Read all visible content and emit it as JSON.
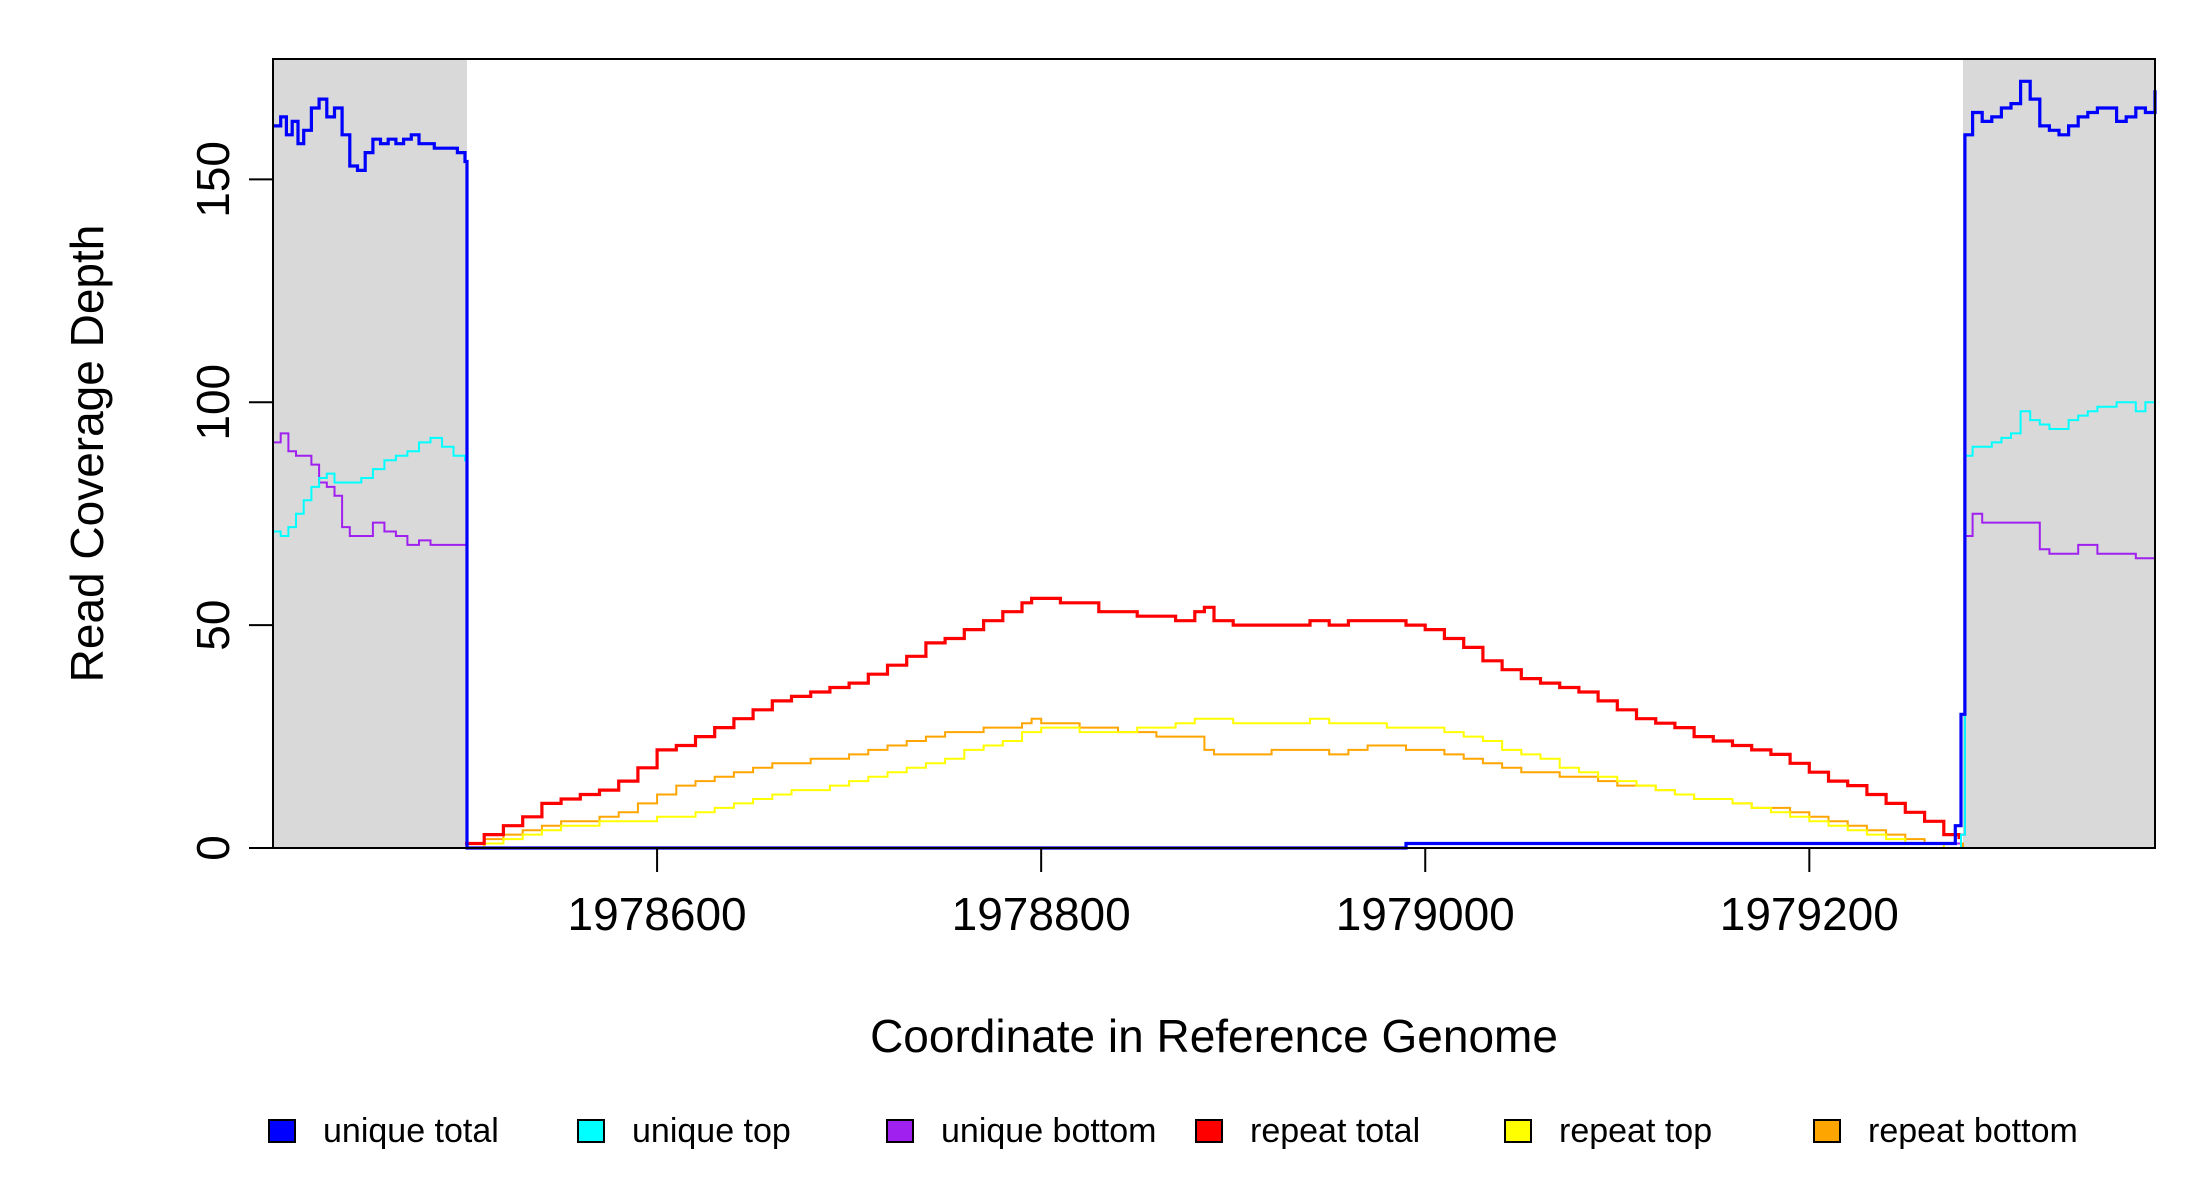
{
  "chart_data": {
    "type": "line",
    "title": "",
    "xlabel": "Coordinate in Reference Genome",
    "ylabel": "Read Coverage Depth",
    "xlim": [
      1978400,
      1979380
    ],
    "ylim": [
      0,
      177
    ],
    "x_ticks": [
      1978600,
      1978800,
      1979000,
      1979200
    ],
    "x_tick_labels": [
      "1978600",
      "1978800",
      "1979000",
      "1979200"
    ],
    "y_ticks": [
      0,
      50,
      100,
      150
    ],
    "y_tick_labels": [
      "0",
      "50",
      "100",
      "150"
    ],
    "shaded_regions": [
      {
        "x0": 1978400,
        "x1": 1978501,
        "color": "#d9d9d9"
      },
      {
        "x0": 1979280,
        "x1": 1979380,
        "color": "#d9d9d9"
      }
    ],
    "grid": false,
    "legend_position": "bottom",
    "series": [
      {
        "name": "unique total",
        "color": "#0000ff",
        "x": [
          1978400,
          1978404,
          1978407,
          1978410,
          1978413,
          1978416,
          1978420,
          1978424,
          1978428,
          1978432,
          1978436,
          1978440,
          1978444,
          1978448,
          1978452,
          1978456,
          1978460,
          1978464,
          1978468,
          1978472,
          1978476,
          1978480,
          1978484,
          1978488,
          1978492,
          1978496,
          1978500,
          1978501,
          1978990,
          1979270,
          1979276,
          1979279,
          1979281,
          1979285,
          1979290,
          1979295,
          1979300,
          1979305,
          1979310,
          1979315,
          1979320,
          1979325,
          1979330,
          1979335,
          1979340,
          1979345,
          1979350,
          1979355,
          1979360,
          1979365,
          1979370,
          1979375,
          1979380
        ],
        "y": [
          162,
          164,
          160,
          163,
          158,
          161,
          166,
          168,
          164,
          166,
          160,
          153,
          152,
          156,
          159,
          158,
          159,
          158,
          159,
          160,
          158,
          158,
          157,
          157,
          157,
          156,
          154,
          0,
          1,
          1,
          5,
          30,
          160,
          165,
          163,
          164,
          166,
          167,
          172,
          168,
          162,
          161,
          160,
          162,
          164,
          165,
          166,
          166,
          163,
          164,
          166,
          165,
          170
        ]
      },
      {
        "name": "unique top",
        "color": "#00ffff",
        "x": [
          1978400,
          1978404,
          1978408,
          1978412,
          1978416,
          1978420,
          1978424,
          1978428,
          1978432,
          1978436,
          1978440,
          1978446,
          1978452,
          1978458,
          1978464,
          1978470,
          1978476,
          1978482,
          1978488,
          1978494,
          1978500,
          1978501,
          1978990,
          1979270,
          1979279,
          1979281,
          1979285,
          1979290,
          1979295,
          1979300,
          1979305,
          1979310,
          1979315,
          1979320,
          1979325,
          1979330,
          1979335,
          1979340,
          1979345,
          1979350,
          1979355,
          1979360,
          1979365,
          1979370,
          1979375,
          1979380
        ],
        "y": [
          71,
          70,
          72,
          75,
          78,
          81,
          83,
          84,
          82,
          82,
          82,
          83,
          85,
          87,
          88,
          89,
          91,
          92,
          90,
          88,
          87,
          0,
          0,
          0,
          3,
          88,
          90,
          90,
          91,
          92,
          93,
          98,
          96,
          95,
          94,
          94,
          96,
          97,
          98,
          99,
          99,
          100,
          100,
          98,
          100,
          105
        ]
      },
      {
        "name": "unique bottom",
        "color": "#a020f0",
        "x": [
          1978400,
          1978404,
          1978408,
          1978412,
          1978416,
          1978420,
          1978424,
          1978428,
          1978432,
          1978436,
          1978440,
          1978446,
          1978452,
          1978458,
          1978464,
          1978470,
          1978476,
          1978482,
          1978488,
          1978494,
          1978500,
          1978501,
          1978990,
          1979270,
          1979279,
          1979281,
          1979285,
          1979290,
          1979300,
          1979310,
          1979315,
          1979320,
          1979325,
          1979330,
          1979340,
          1979350,
          1979360,
          1979370,
          1979380
        ],
        "y": [
          91,
          93,
          89,
          88,
          88,
          86,
          82,
          81,
          79,
          72,
          70,
          70,
          73,
          71,
          70,
          68,
          69,
          68,
          68,
          68,
          68,
          0,
          1,
          1,
          3,
          70,
          75,
          73,
          73,
          73,
          73,
          67,
          66,
          66,
          68,
          66,
          66,
          65,
          65
        ]
      },
      {
        "name": "repeat total",
        "color": "#ff0000",
        "x": [
          1978500,
          1978510,
          1978520,
          1978530,
          1978540,
          1978550,
          1978560,
          1978570,
          1978580,
          1978590,
          1978600,
          1978610,
          1978620,
          1978630,
          1978640,
          1978650,
          1978660,
          1978670,
          1978680,
          1978690,
          1978700,
          1978710,
          1978720,
          1978730,
          1978740,
          1978750,
          1978760,
          1978770,
          1978780,
          1978790,
          1978795,
          1978800,
          1978810,
          1978820,
          1978830,
          1978840,
          1978850,
          1978860,
          1978870,
          1978880,
          1978885,
          1978890,
          1978900,
          1978910,
          1978920,
          1978930,
          1978940,
          1978950,
          1978960,
          1978970,
          1978980,
          1978990,
          1979000,
          1979010,
          1979020,
          1979030,
          1979040,
          1979050,
          1979060,
          1979070,
          1979080,
          1979090,
          1979100,
          1979110,
          1979120,
          1979130,
          1979140,
          1979150,
          1979160,
          1979170,
          1979180,
          1979190,
          1979200,
          1979210,
          1979220,
          1979230,
          1979240,
          1979250,
          1979260,
          1979270,
          1979278
        ],
        "y": [
          1,
          3,
          5,
          7,
          10,
          11,
          12,
          13,
          15,
          18,
          22,
          23,
          25,
          27,
          29,
          31,
          33,
          34,
          35,
          36,
          37,
          39,
          41,
          43,
          46,
          47,
          49,
          51,
          53,
          55,
          56,
          56,
          55,
          55,
          53,
          53,
          52,
          52,
          51,
          53,
          54,
          51,
          50,
          50,
          50,
          50,
          51,
          50,
          51,
          51,
          51,
          50,
          49,
          47,
          45,
          42,
          40,
          38,
          37,
          36,
          35,
          33,
          31,
          29,
          28,
          27,
          25,
          24,
          23,
          22,
          21,
          19,
          17,
          15,
          14,
          12,
          10,
          8,
          6,
          3,
          2
        ]
      },
      {
        "name": "repeat top",
        "color": "#ffff00",
        "x": [
          1978500,
          1978510,
          1978520,
          1978530,
          1978540,
          1978550,
          1978560,
          1978570,
          1978580,
          1978590,
          1978600,
          1978610,
          1978620,
          1978630,
          1978640,
          1978650,
          1978660,
          1978670,
          1978680,
          1978690,
          1978700,
          1978710,
          1978720,
          1978730,
          1978740,
          1978750,
          1978760,
          1978770,
          1978780,
          1978790,
          1978800,
          1978810,
          1978820,
          1978830,
          1978840,
          1978850,
          1978860,
          1978870,
          1978880,
          1978890,
          1978900,
          1978910,
          1978920,
          1978930,
          1978940,
          1978950,
          1978960,
          1978970,
          1978980,
          1978990,
          1979000,
          1979010,
          1979020,
          1979030,
          1979040,
          1979050,
          1979060,
          1979070,
          1979080,
          1979090,
          1979100,
          1979110,
          1979120,
          1979130,
          1979140,
          1979150,
          1979160,
          1979170,
          1979180,
          1979190,
          1979200,
          1979210,
          1979220,
          1979230,
          1979240,
          1979250,
          1979260,
          1979270,
          1979278
        ],
        "y": [
          0,
          1,
          2,
          3,
          4,
          5,
          5,
          6,
          6,
          6,
          7,
          7,
          8,
          9,
          10,
          11,
          12,
          13,
          13,
          14,
          15,
          16,
          17,
          18,
          19,
          20,
          22,
          23,
          24,
          26,
          27,
          27,
          26,
          26,
          26,
          27,
          27,
          28,
          29,
          29,
          28,
          28,
          28,
          28,
          29,
          28,
          28,
          28,
          27,
          27,
          27,
          26,
          25,
          24,
          22,
          21,
          20,
          18,
          17,
          16,
          15,
          14,
          13,
          12,
          11,
          11,
          10,
          9,
          8,
          7,
          6,
          5,
          4,
          3,
          2,
          1,
          1,
          0,
          0
        ]
      },
      {
        "name": "repeat bottom",
        "color": "#ffa500",
        "x": [
          1978400,
          1978500,
          1978510,
          1978520,
          1978530,
          1978540,
          1978550,
          1978560,
          1978570,
          1978580,
          1978590,
          1978600,
          1978610,
          1978620,
          1978630,
          1978640,
          1978650,
          1978660,
          1978670,
          1978680,
          1978690,
          1978700,
          1978710,
          1978720,
          1978730,
          1978740,
          1978750,
          1978760,
          1978770,
          1978780,
          1978790,
          1978795,
          1978800,
          1978810,
          1978820,
          1978830,
          1978840,
          1978850,
          1978860,
          1978870,
          1978880,
          1978885,
          1978890,
          1978900,
          1978910,
          1978920,
          1978930,
          1978940,
          1978950,
          1978960,
          1978970,
          1978980,
          1978990,
          1979000,
          1979010,
          1979020,
          1979030,
          1979040,
          1979050,
          1979060,
          1979070,
          1979080,
          1979090,
          1979100,
          1979110,
          1979120,
          1979130,
          1979140,
          1979150,
          1979160,
          1979170,
          1979180,
          1979190,
          1979200,
          1979210,
          1979220,
          1979230,
          1979240,
          1979250,
          1979260,
          1979270,
          1979280,
          1979380
        ],
        "y": [
          0,
          0,
          2,
          3,
          4,
          5,
          6,
          6,
          7,
          8,
          10,
          12,
          14,
          15,
          16,
          17,
          18,
          19,
          19,
          20,
          20,
          21,
          22,
          23,
          24,
          25,
          26,
          26,
          27,
          27,
          28,
          29,
          28,
          28,
          27,
          27,
          26,
          26,
          25,
          25,
          25,
          22,
          21,
          21,
          21,
          22,
          22,
          22,
          21,
          22,
          23,
          23,
          22,
          22,
          21,
          20,
          19,
          18,
          17,
          17,
          16,
          16,
          15,
          14,
          14,
          13,
          12,
          11,
          11,
          10,
          9,
          9,
          8,
          7,
          6,
          5,
          4,
          3,
          2,
          1,
          1,
          0,
          0
        ]
      }
    ],
    "legend": [
      {
        "label": "unique total",
        "color": "#0000ff"
      },
      {
        "label": "unique top",
        "color": "#00ffff"
      },
      {
        "label": "unique bottom",
        "color": "#a020f0"
      },
      {
        "label": "repeat total",
        "color": "#ff0000"
      },
      {
        "label": "repeat top",
        "color": "#ffff00"
      },
      {
        "label": "repeat bottom",
        "color": "#ffa500"
      }
    ]
  }
}
